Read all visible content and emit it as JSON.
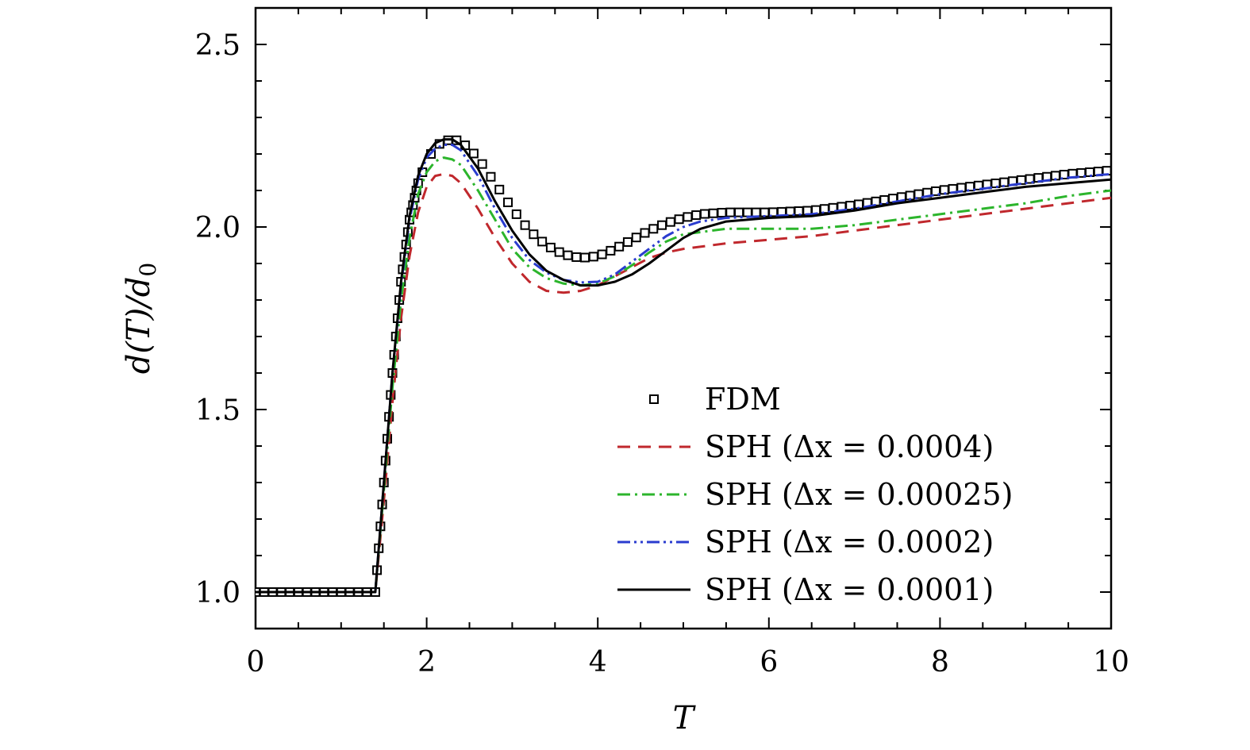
{
  "chart_data": {
    "type": "line",
    "title": "",
    "xlabel": "T",
    "ylabel": "d(T)/d0",
    "xlim": [
      0,
      10
    ],
    "ylim": [
      0.9,
      2.6
    ],
    "xticks": [
      0,
      2,
      4,
      6,
      8,
      10
    ],
    "xtick_labels": [
      "0",
      "2",
      "4",
      "6",
      "8",
      "10"
    ],
    "yticks": [
      1.0,
      1.5,
      2.0,
      2.5
    ],
    "ytick_labels": [
      "1.0",
      "1.5",
      "2.0",
      "2.5"
    ],
    "legend_position": "bottom-right",
    "series": [
      {
        "name": "FDM",
        "style": "markers-square",
        "color": "#000000",
        "x": [
          0,
          1.4,
          1.5,
          1.6,
          1.7,
          1.8,
          1.9,
          2.0,
          2.1,
          2.2,
          2.3,
          2.4,
          2.6,
          2.8,
          3.0,
          3.2,
          3.4,
          3.6,
          3.8,
          4.0,
          4.2,
          4.4,
          4.6,
          4.8,
          5.0,
          5.2,
          5.5,
          6.0,
          6.5,
          7.0,
          7.5,
          8.0,
          8.5,
          9.0,
          9.5,
          10.0
        ],
        "y": [
          1.0,
          1.0,
          1.3,
          1.6,
          1.85,
          2.02,
          2.12,
          2.18,
          2.22,
          2.235,
          2.24,
          2.235,
          2.19,
          2.12,
          2.05,
          1.99,
          1.95,
          1.925,
          1.915,
          1.92,
          1.94,
          1.965,
          1.99,
          2.01,
          2.025,
          2.035,
          2.04,
          2.04,
          2.045,
          2.06,
          2.08,
          2.1,
          2.115,
          2.13,
          2.145,
          2.155
        ]
      },
      {
        "name": "SPH (Δx = 0.0004)",
        "style": "dashed",
        "color": "#c0282d",
        "x": [
          0,
          1.4,
          1.5,
          1.6,
          1.7,
          1.8,
          1.9,
          2.0,
          2.1,
          2.2,
          2.3,
          2.4,
          2.6,
          2.8,
          3.0,
          3.2,
          3.4,
          3.6,
          3.8,
          4.0,
          4.2,
          4.4,
          4.6,
          4.8,
          5.0,
          5.5,
          6.0,
          6.5,
          7.0,
          7.5,
          8.0,
          8.5,
          9.0,
          9.5,
          10.0
        ],
        "y": [
          1.0,
          1.0,
          1.25,
          1.52,
          1.75,
          1.92,
          2.04,
          2.11,
          2.14,
          2.145,
          2.14,
          2.12,
          2.05,
          1.97,
          1.9,
          1.85,
          1.825,
          1.82,
          1.825,
          1.84,
          1.865,
          1.89,
          1.915,
          1.93,
          1.94,
          1.955,
          1.965,
          1.975,
          1.99,
          2.005,
          2.02,
          2.035,
          2.05,
          2.065,
          2.08
        ]
      },
      {
        "name": "SPH (Δx = 0.00025)",
        "style": "dash-dot",
        "color": "#2cb52c",
        "x": [
          0,
          1.4,
          1.5,
          1.6,
          1.7,
          1.8,
          1.9,
          2.0,
          2.1,
          2.2,
          2.3,
          2.4,
          2.6,
          2.8,
          3.0,
          3.2,
          3.4,
          3.6,
          3.8,
          4.0,
          4.2,
          4.4,
          4.6,
          4.8,
          5.0,
          5.5,
          6.0,
          6.5,
          7.0,
          7.5,
          8.0,
          8.5,
          9.0,
          9.5,
          10.0
        ],
        "y": [
          1.0,
          1.0,
          1.28,
          1.56,
          1.8,
          1.97,
          2.09,
          2.15,
          2.18,
          2.19,
          2.185,
          2.17,
          2.1,
          2.02,
          1.94,
          1.89,
          1.86,
          1.845,
          1.84,
          1.845,
          1.865,
          1.895,
          1.93,
          1.96,
          1.98,
          1.995,
          1.995,
          1.995,
          2.005,
          2.02,
          2.035,
          2.05,
          2.065,
          2.085,
          2.1
        ]
      },
      {
        "name": "SPH (Δx = 0.0002)",
        "style": "dash-dot-dot",
        "color": "#2a3ccf",
        "x": [
          0,
          1.4,
          1.5,
          1.6,
          1.7,
          1.8,
          1.9,
          2.0,
          2.1,
          2.2,
          2.3,
          2.4,
          2.6,
          2.8,
          3.0,
          3.2,
          3.4,
          3.6,
          3.8,
          4.0,
          4.2,
          4.4,
          4.6,
          4.8,
          5.0,
          5.2,
          5.5,
          6.0,
          6.5,
          7.0,
          7.5,
          8.0,
          8.5,
          9.0,
          9.5,
          10.0
        ],
        "y": [
          1.0,
          1.0,
          1.3,
          1.6,
          1.84,
          2.02,
          2.13,
          2.19,
          2.215,
          2.225,
          2.225,
          2.21,
          2.14,
          2.05,
          1.97,
          1.91,
          1.875,
          1.855,
          1.848,
          1.85,
          1.87,
          1.905,
          1.94,
          1.975,
          2.0,
          2.015,
          2.025,
          2.03,
          2.035,
          2.05,
          2.07,
          2.09,
          2.105,
          2.12,
          2.135,
          2.145
        ]
      },
      {
        "name": "SPH (Δx = 0.0001)",
        "style": "solid",
        "color": "#000000",
        "x": [
          0,
          1.4,
          1.5,
          1.6,
          1.7,
          1.8,
          1.9,
          2.0,
          2.1,
          2.2,
          2.3,
          2.4,
          2.6,
          2.8,
          3.0,
          3.2,
          3.4,
          3.6,
          3.8,
          4.0,
          4.2,
          4.4,
          4.6,
          4.8,
          5.0,
          5.2,
          5.5,
          6.0,
          6.5,
          7.0,
          7.5,
          8.0,
          8.5,
          9.0,
          9.5,
          10.0
        ],
        "y": [
          1.0,
          1.0,
          1.3,
          1.6,
          1.85,
          2.03,
          2.14,
          2.2,
          2.23,
          2.24,
          2.24,
          2.225,
          2.16,
          2.07,
          1.99,
          1.925,
          1.88,
          1.855,
          1.84,
          1.84,
          1.85,
          1.87,
          1.9,
          1.935,
          1.97,
          1.995,
          2.015,
          2.025,
          2.03,
          2.045,
          2.065,
          2.08,
          2.095,
          2.11,
          2.12,
          2.13
        ]
      }
    ]
  }
}
